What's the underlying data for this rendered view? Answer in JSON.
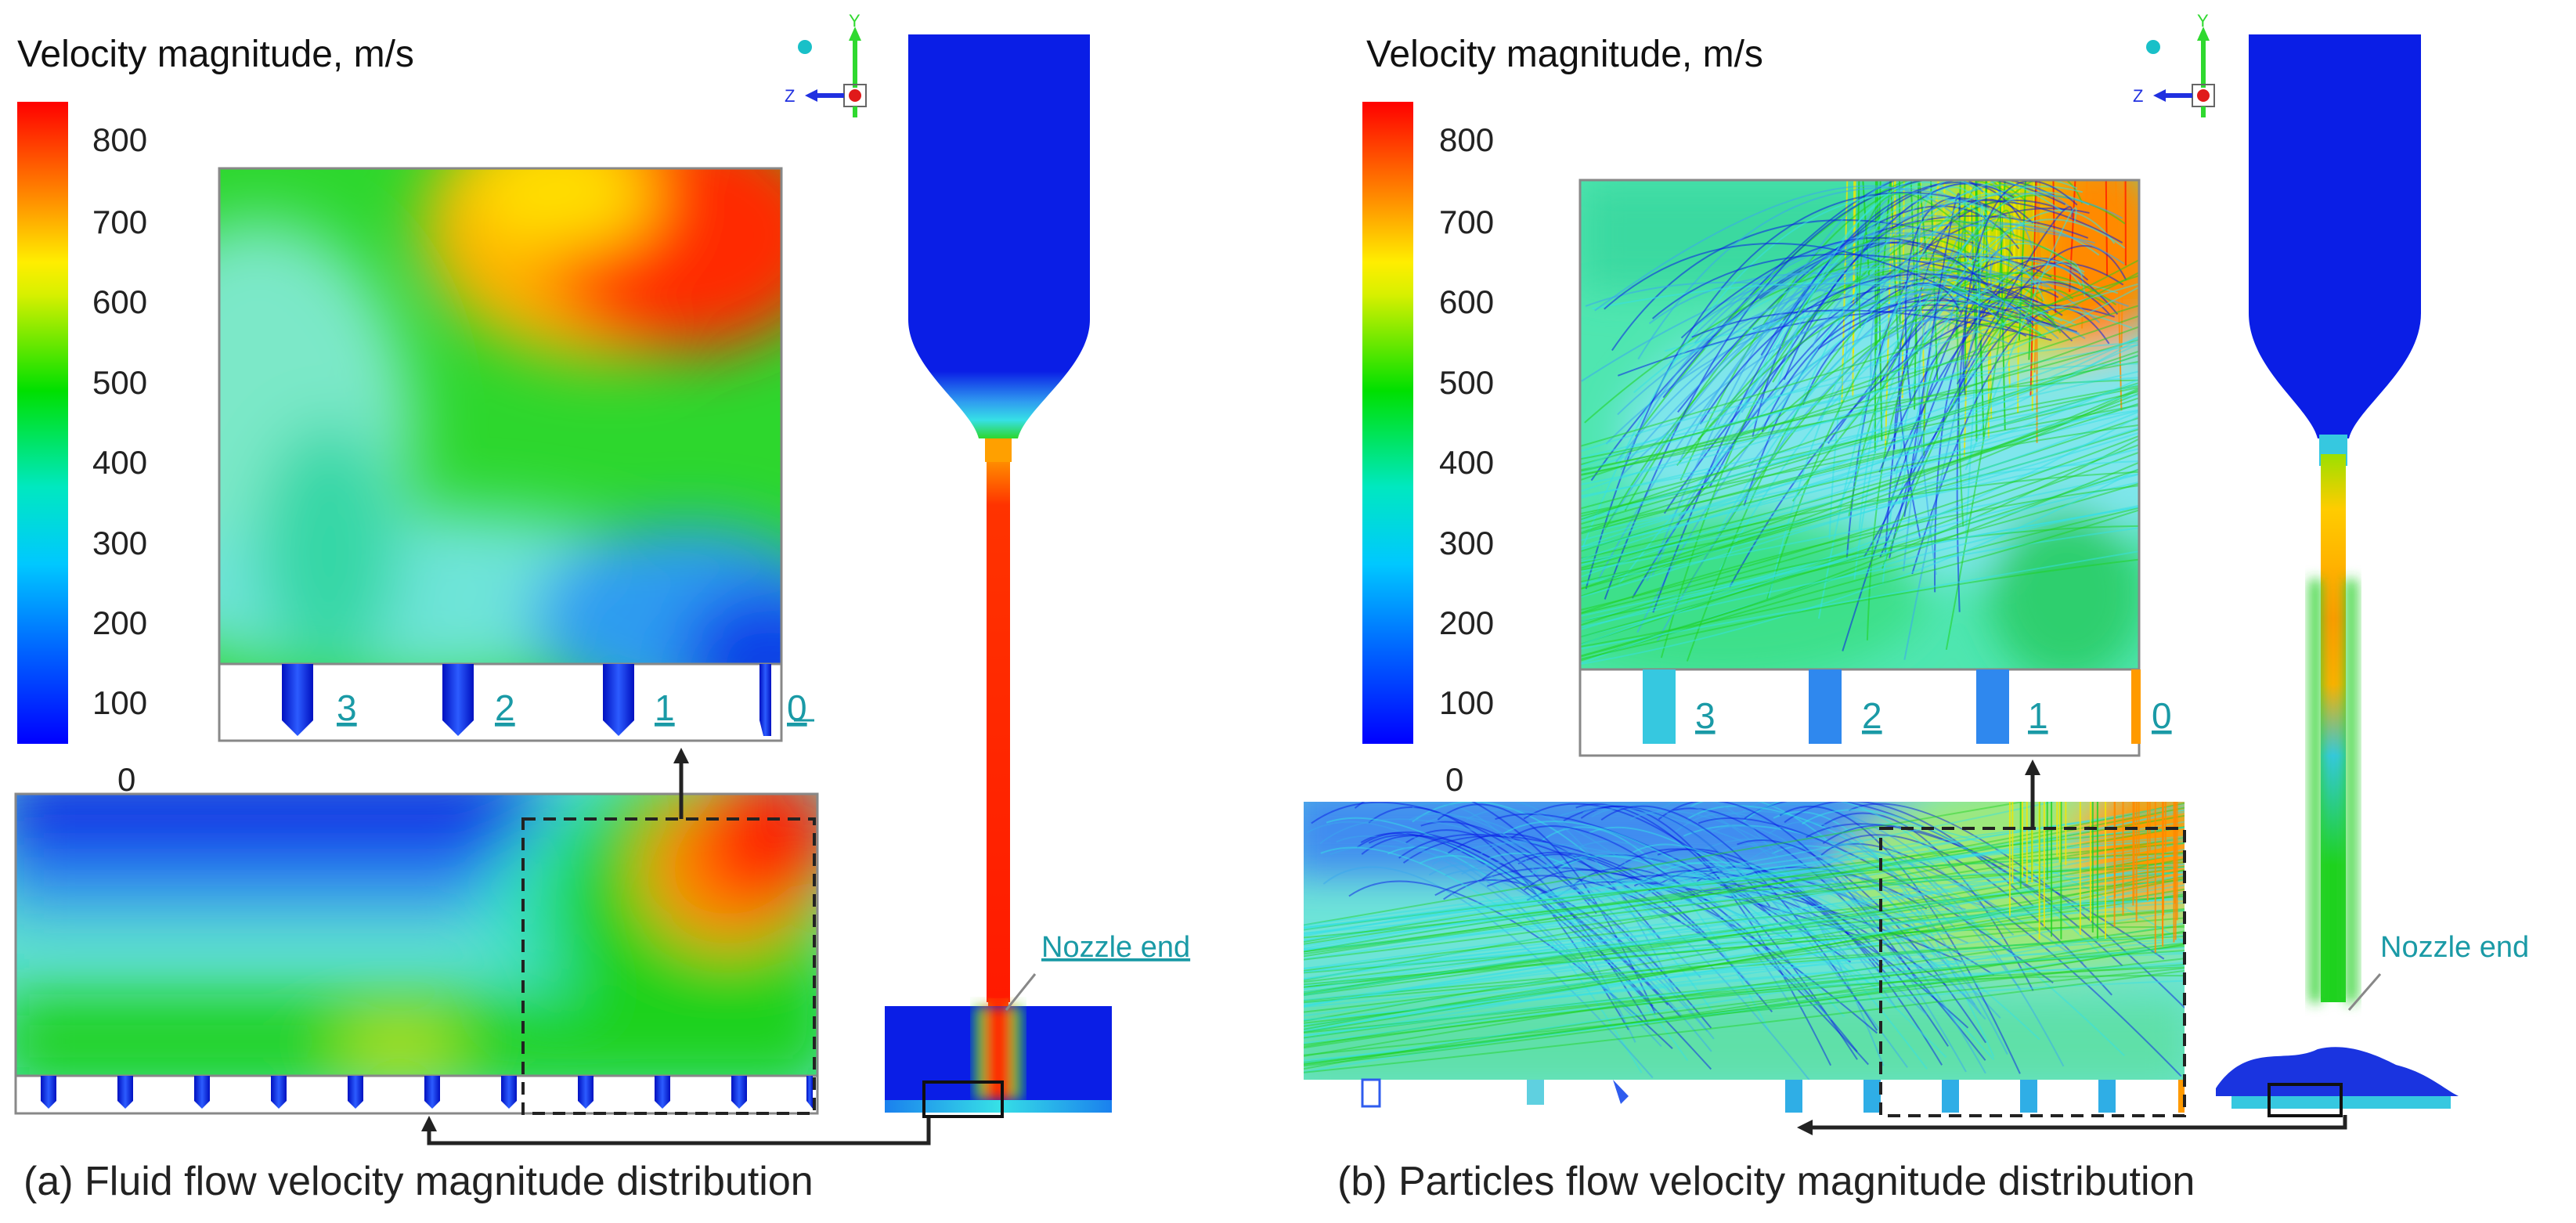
{
  "colorbar": {
    "title": "Velocity magnitude, m/s",
    "ticks": [
      "800",
      "700",
      "600",
      "500",
      "400",
      "300",
      "200",
      "100",
      "0"
    ],
    "colors": [
      "#ff0000",
      "#ff8a00",
      "#ffe600",
      "#00e000",
      "#00e0a0",
      "#00e0ff",
      "#0090ff",
      "#0000ff"
    ]
  },
  "panels": {
    "a": {
      "caption": "(a) Fluid flow velocity magnitude distribution",
      "nozzle_label": "Nozzle end",
      "holes": [
        "3",
        "2",
        "1",
        "0"
      ]
    },
    "b": {
      "caption": "(b) Particles flow velocity magnitude distribution",
      "nozzle_label": "Nozzle end",
      "holes": [
        "3",
        "2",
        "1",
        "0"
      ]
    }
  },
  "triad": {
    "y": "Y",
    "z": "Z"
  },
  "palette": {
    "red": "#ff1a00",
    "orange": "#ff8a00",
    "yellow": "#f2e600",
    "green": "#1fd21f",
    "cyan": "#36e0e6",
    "lightblue": "#3aa8ee",
    "blue": "#0a1ee6",
    "deepblue": "#0000dc",
    "label": "#1a9aa6"
  }
}
